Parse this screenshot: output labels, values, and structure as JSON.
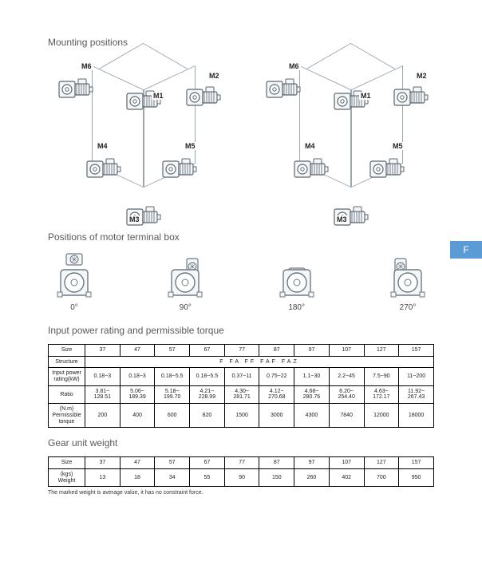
{
  "sideTab": "F",
  "sections": {
    "mounting": "Mounting positions",
    "terminal": "Positions of motor terminal box",
    "power": "Input power rating and permissible torque",
    "weight": "Gear unit weight"
  },
  "mountLabels": [
    "M1",
    "M2",
    "M3",
    "M4",
    "M5",
    "M6"
  ],
  "terminalBox": {
    "angles": [
      "0°",
      "90°",
      "180°",
      "270°"
    ],
    "rotations": [
      0,
      90,
      180,
      270
    ],
    "stroke": "#6c7a86",
    "fill": "#f5f6f7"
  },
  "powerTable": {
    "sizeLabel": "Size",
    "sizes": [
      "37",
      "47",
      "57",
      "67",
      "77",
      "87",
      "97",
      "107",
      "127",
      "157"
    ],
    "structureLabel": "Structure",
    "structureValue": "F   FA   FF   FAF   FAZ",
    "rows": [
      {
        "label": "Input power\nrating(kW)",
        "cells": [
          "0.18~3",
          "0.18~3",
          "0.18~5.5",
          "0.18~5.5",
          "0.37~11",
          "0.75~22",
          "1.1~30",
          "2.2~45",
          "7.5~90",
          "11~200"
        ]
      },
      {
        "label": "Ratio",
        "cells": [
          "3.81~\n128.51",
          "5.06~\n189.39",
          "5.18~\n199.70",
          "4.21~\n228.99",
          "4.30~\n281.71",
          "4.12~\n270.68",
          "4.68~\n280.76",
          "6.20~\n254.40",
          "4.63~\n172.17",
          "11.92~\n267.43"
        ]
      },
      {
        "label": "(N.m)\nPermissible torque",
        "cells": [
          "200",
          "400",
          "600",
          "820",
          "1500",
          "3000",
          "4300",
          "7840",
          "12000",
          "18000"
        ]
      }
    ]
  },
  "weightTable": {
    "sizeLabel": "Size",
    "sizes": [
      "37",
      "47",
      "57",
      "67",
      "77",
      "87",
      "97",
      "107",
      "127",
      "157"
    ],
    "row": {
      "label": "(kgs)\nWeight",
      "cells": [
        "13",
        "18",
        "34",
        "55",
        "90",
        "150",
        "260",
        "402",
        "700",
        "950"
      ]
    }
  },
  "footnote": "The marked weight is average value, it has no constraint force.",
  "motorSvg": {
    "stroke": "#5b6770",
    "fill": "#f4f6f8"
  }
}
